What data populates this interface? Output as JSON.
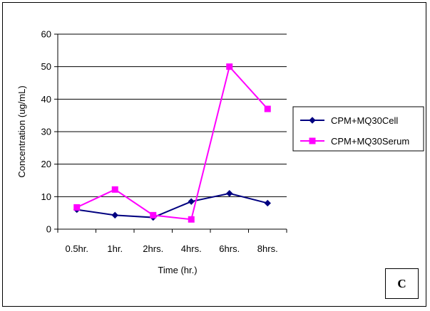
{
  "chart_data": {
    "type": "line",
    "title": "",
    "xlabel": "Time (hr.)",
    "ylabel": "Concentration (ug/mL)",
    "categories": [
      "0.5hr.",
      "1hr.",
      "2hrs.",
      "4hrs.",
      "6hrs.",
      "8hrs."
    ],
    "ylim": [
      0,
      60
    ],
    "yticks": [
      "0",
      "10",
      "20",
      "30",
      "40",
      "50",
      "60"
    ],
    "grid": true,
    "legend_position": "right",
    "series": [
      {
        "name": "CPM+MQ30Cell",
        "color": "#000080",
        "marker": "diamond",
        "values": [
          6,
          4.3,
          3.6,
          8.5,
          11,
          8
        ]
      },
      {
        "name": "CPM+MQ30Serum",
        "color": "#FF00FF",
        "marker": "square",
        "values": [
          6.7,
          12.2,
          4.3,
          3,
          50,
          37
        ]
      }
    ]
  },
  "panel_label": "C"
}
